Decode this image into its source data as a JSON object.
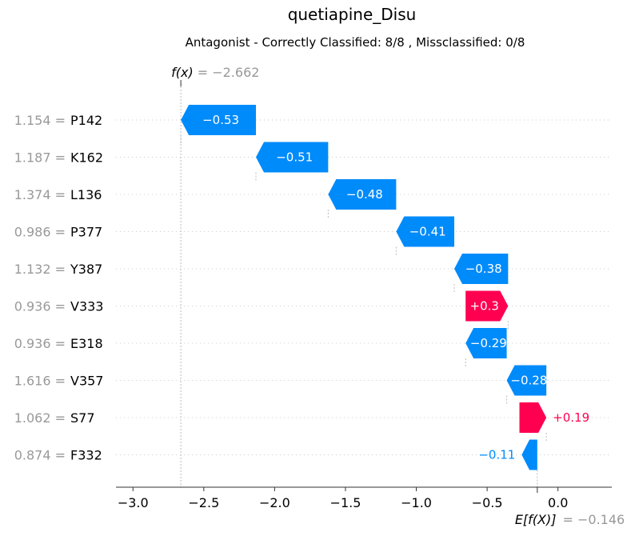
{
  "chart_data": {
    "type": "waterfall",
    "title": "quetiapine_Disu",
    "subtitle": "Antagonist - Correctly Classified: 8/8 , Missclassified: 0/8",
    "fx_label": "f(x)",
    "fx_value": "= −2.662",
    "fx": -2.662,
    "base_label": "E[f(X)]",
    "base_value": "= −0.146",
    "base": -0.146,
    "xlim": [
      -3.12,
      0.38
    ],
    "xticks": [
      {
        "value": -3.0,
        "label": "−3.0"
      },
      {
        "value": -2.5,
        "label": "−2.5"
      },
      {
        "value": -2.0,
        "label": "−2.0"
      },
      {
        "value": -1.5,
        "label": "−1.5"
      },
      {
        "value": -1.0,
        "label": "−1.0"
      },
      {
        "value": -0.5,
        "label": "−0.5"
      },
      {
        "value": 0.0,
        "label": "0.0"
      }
    ],
    "features": [
      {
        "value_text": "1.154 =",
        "name": "P142",
        "start": -2.132,
        "end": -2.662,
        "label": "−0.53"
      },
      {
        "value_text": "1.187 =",
        "name": "K162",
        "start": -1.622,
        "end": -2.132,
        "label": "−0.51"
      },
      {
        "value_text": "1.374 =",
        "name": "L136",
        "start": -1.142,
        "end": -1.622,
        "label": "−0.48"
      },
      {
        "value_text": "0.986 =",
        "name": "P377",
        "start": -0.732,
        "end": -1.142,
        "label": "−0.41"
      },
      {
        "value_text": "1.132 =",
        "name": "Y387",
        "start": -0.352,
        "end": -0.732,
        "label": "−0.38"
      },
      {
        "value_text": "0.936 =",
        "name": "V333",
        "start": -0.652,
        "end": -0.352,
        "label": "+0.3"
      },
      {
        "value_text": "0.936 =",
        "name": "E318",
        "start": -0.362,
        "end": -0.652,
        "label": "−0.29"
      },
      {
        "value_text": "1.616 =",
        "name": "V357",
        "start": -0.082,
        "end": -0.362,
        "label": "−0.28"
      },
      {
        "value_text": "1.062 =",
        "name": "S77",
        "start": -0.272,
        "end": -0.082,
        "label": "+0.19"
      },
      {
        "value_text": "0.874 =",
        "name": "F332",
        "start": -0.146,
        "end": -0.256,
        "label": "−0.11"
      }
    ],
    "colors": {
      "negative": "#008bfb",
      "positive": "#ff0051",
      "value_grey": "#999999"
    }
  }
}
